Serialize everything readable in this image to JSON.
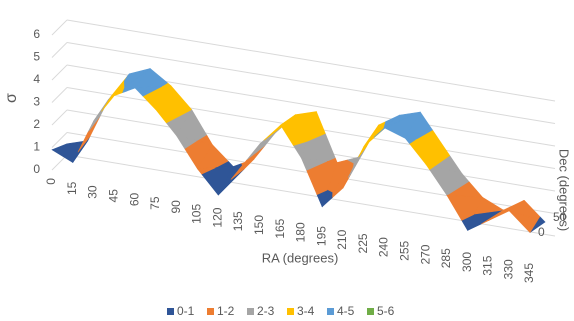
{
  "chart_data": {
    "type": "surface",
    "x_label": "RA (degrees)",
    "y_label": "Dec (degrees)",
    "z_label": "σ",
    "categories": [
      "0",
      "15",
      "30",
      "45",
      "60",
      "75",
      "90",
      "105",
      "120",
      "135",
      "150",
      "165",
      "180",
      "195",
      "210",
      "225",
      "240",
      "255",
      "270",
      "285",
      "300",
      "315",
      "330",
      "345"
    ],
    "depth_categories": [
      "0",
      "50"
    ],
    "z": [
      [
        0.9,
        0.5,
        2.5,
        3.8,
        4.3,
        3.5,
        2.5,
        1.2,
        0.2,
        1.5,
        2.8,
        3.8,
        2.5,
        0.5,
        1.5,
        3.5,
        4.5,
        4.2,
        3.2,
        2.0,
        0.6,
        1.2,
        1.8,
        1.0
      ],
      [
        0.5,
        0.8,
        2.8,
        4.1,
        4.5,
        3.9,
        3.0,
        1.6,
        0.8,
        1.3,
        2.6,
        3.6,
        3.9,
        1.8,
        2.2,
        3.8,
        4.4,
        4.7,
        3.5,
        2.3,
        1.4,
        1.0,
        1.6,
        0.8
      ]
    ],
    "zlim": [
      0,
      6
    ],
    "zticks": [
      0,
      1,
      2,
      3,
      4,
      5,
      6
    ],
    "grid": true,
    "legend": "bottom",
    "bands": [
      {
        "name": "0-1",
        "color": "#2f5597"
      },
      {
        "name": "1-2",
        "color": "#ed7d31"
      },
      {
        "name": "2-3",
        "color": "#a5a5a5"
      },
      {
        "name": "3-4",
        "color": "#ffc000"
      },
      {
        "name": "4-5",
        "color": "#5b9bd5"
      },
      {
        "name": "5-6",
        "color": "#70ad47"
      }
    ]
  }
}
